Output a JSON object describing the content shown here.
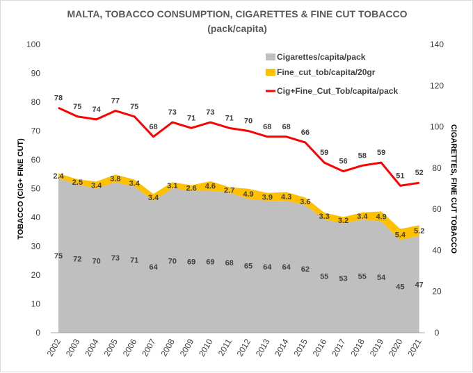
{
  "chart_data": {
    "type": "area",
    "title_line1": "MALTA, TOBACCO CONSUMPTION, CIGARETTES & FINE CUT TOBACCO",
    "title_line2": "(pack/capita)",
    "ylabel_left": "TOBACCO (CIG+ FINE CUT)",
    "ylabel_right": "CIGARETTES,  FINE CUT TOBACCO",
    "xlabel": "",
    "ylim_left": [
      0,
      100
    ],
    "ylim_right": [
      0,
      140
    ],
    "yticks_left": [
      "0",
      "10",
      "20",
      "30",
      "40",
      "50",
      "60",
      "70",
      "80",
      "90",
      "100"
    ],
    "yticks_right": [
      "0",
      "20",
      "40",
      "60",
      "80",
      "100",
      "120",
      "140"
    ],
    "categories": [
      "2002",
      "2003",
      "2004",
      "2005",
      "2006",
      "2007",
      "2008",
      "2009",
      "2010",
      "2011",
      "2012",
      "2013",
      "2014",
      "2015",
      "2016",
      "2017",
      "2018",
      "2019",
      "2020",
      "2021"
    ],
    "series": [
      {
        "name": "Cigarettes/capita/pack",
        "color": "#bfbfbf",
        "kind": "area",
        "values": [
          75,
          72,
          70,
          73,
          71,
          64,
          70,
          69,
          69,
          68,
          65,
          64,
          64,
          62,
          55,
          53,
          55,
          54,
          45,
          47
        ],
        "labels": [
          "75",
          "72",
          "70",
          "73",
          "71",
          "64",
          "70",
          "69",
          "69",
          "68",
          "65",
          "64",
          "64",
          "62",
          "55",
          "53",
          "55",
          "54",
          "45",
          "47"
        ]
      },
      {
        "name": "Fine_cut_tob/capita/20gr",
        "color": "#ffc000",
        "kind": "stacked-area",
        "values": [
          2.4,
          2.5,
          3.4,
          3.8,
          3.4,
          3.4,
          3.1,
          2.6,
          4.6,
          2.7,
          4.9,
          3.9,
          4.3,
          3.6,
          3.3,
          3.2,
          3.4,
          4.9,
          5.4,
          5.2
        ],
        "labels": [
          "2.4",
          "2.5",
          "3.4",
          "3.8",
          "3.4",
          "3.4",
          "3.1",
          "2.6",
          "4.6",
          "2.7",
          "4.9",
          "3.9",
          "4.3",
          "3.6",
          "3.3",
          "3.2",
          "3.4",
          "4.9",
          "5.4",
          "5.2"
        ]
      },
      {
        "name": "Cig+Fine_Cut_Tob/capita/pack",
        "color": "#ff0000",
        "kind": "line",
        "values": [
          78,
          75,
          74,
          77,
          75,
          68,
          73,
          71,
          73,
          71,
          70,
          68,
          68,
          66,
          59,
          56,
          58,
          59,
          51,
          52
        ],
        "labels": [
          "78",
          "75",
          "74",
          "77",
          "75",
          "68",
          "73",
          "71",
          "73",
          "71",
          "70",
          "68",
          "68",
          "66",
          "59",
          "56",
          "58",
          "59",
          "51",
          "52"
        ]
      }
    ],
    "legend_position": "top-right"
  }
}
